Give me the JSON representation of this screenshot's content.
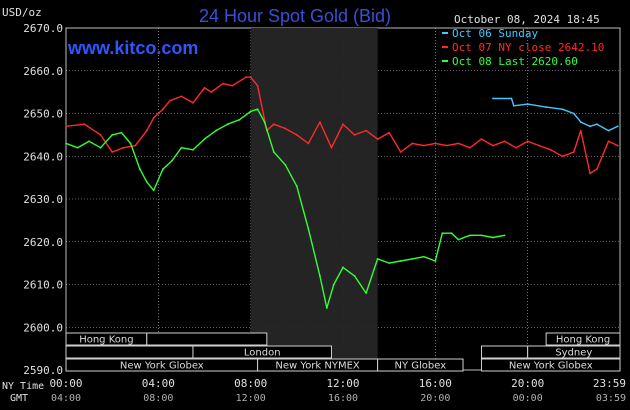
{
  "chart_data": {
    "type": "line",
    "title": "24 Hour Spot Gold (Bid)",
    "brand": "www.kitco.com",
    "timestamp": "October 08, 2024 18:45",
    "ylabel": "USD/oz",
    "ylim": [
      2590,
      2670
    ],
    "yticks": [
      "2670.0",
      "2660.0",
      "2650.0",
      "2640.0",
      "2630.0",
      "2620.0",
      "2610.0",
      "2600.0",
      "2590.0"
    ],
    "xlim": [
      0,
      24
    ],
    "x_row_labels": [
      "NY Time",
      "GMT"
    ],
    "xticks_ny": [
      "00:00",
      "04:00",
      "08:00",
      "12:00",
      "16:00",
      "20:00",
      "23:59"
    ],
    "xticks_gmt": [
      "04:00",
      "08:00",
      "12:00",
      "16:00",
      "20:00",
      "00:00",
      "03:59"
    ],
    "shade": [
      8.0,
      13.5
    ],
    "grid": true,
    "legend_position": "top-right",
    "series": [
      {
        "name": "Oct 06 Sunday",
        "color": "#44c8ff",
        "x": [
          18.5,
          19.3,
          19.4,
          20.0,
          20.8,
          21.5,
          22.0,
          22.3,
          22.7,
          23.0,
          23.5,
          23.9
        ],
        "y": [
          2653.5,
          2653.5,
          2651.8,
          2652.2,
          2651.5,
          2651.0,
          2650.0,
          2648.0,
          2647.0,
          2647.5,
          2646.0,
          2647.0
        ]
      },
      {
        "name": "Oct 07 NY close 2642.10",
        "color": "#ff2a2a",
        "x": [
          0,
          0.8,
          1.5,
          2.0,
          2.5,
          3.0,
          3.5,
          3.8,
          4.2,
          4.5,
          5.0,
          5.5,
          6.0,
          6.3,
          6.8,
          7.2,
          7.8,
          8.0,
          8.3,
          8.7,
          9.0,
          9.5,
          10.0,
          10.5,
          11.0,
          11.5,
          12.0,
          12.5,
          13.0,
          13.5,
          14.0,
          14.5,
          15.0,
          15.5,
          16.0,
          16.5,
          17.0,
          17.5,
          18.0,
          18.5,
          19.0,
          19.5,
          20.0,
          20.5,
          21.0,
          21.5,
          22.0,
          22.3,
          22.7,
          23.0,
          23.5,
          23.9
        ],
        "y": [
          2647.0,
          2647.5,
          2645.0,
          2641.0,
          2642.0,
          2642.5,
          2646.0,
          2649.0,
          2651.0,
          2653.0,
          2654.0,
          2652.5,
          2656.0,
          2655.0,
          2657.0,
          2656.5,
          2658.5,
          2658.5,
          2656.5,
          2646.0,
          2647.5,
          2646.5,
          2645.0,
          2643.0,
          2648.0,
          2642.0,
          2647.5,
          2645.0,
          2646.0,
          2644.0,
          2645.5,
          2641.0,
          2643.0,
          2642.5,
          2643.0,
          2642.5,
          2643.0,
          2642.0,
          2644.0,
          2642.5,
          2643.5,
          2642.0,
          2643.5,
          2642.5,
          2641.5,
          2640.0,
          2641.0,
          2646.0,
          2636.0,
          2637.0,
          2643.5,
          2642.5
        ]
      },
      {
        "name": "Oct 08 Last 2620.60",
        "color": "#33ff33",
        "x": [
          0,
          0.5,
          1.0,
          1.5,
          2.0,
          2.4,
          2.8,
          3.2,
          3.5,
          3.8,
          4.2,
          4.6,
          5.0,
          5.5,
          6.0,
          6.5,
          7.0,
          7.5,
          8.0,
          8.3,
          8.6,
          9.0,
          9.5,
          10.0,
          10.5,
          11.0,
          11.3,
          11.6,
          12.0,
          12.5,
          13.0,
          13.5,
          14.0,
          14.5,
          15.0,
          15.5,
          16.0,
          16.3,
          16.7,
          17.0,
          17.5,
          18.0,
          18.5,
          19.0
        ],
        "y": [
          2643.0,
          2642.0,
          2643.5,
          2642.0,
          2645.0,
          2645.5,
          2643.0,
          2637.0,
          2634.0,
          2632.0,
          2637.0,
          2639.0,
          2642.0,
          2641.5,
          2644.0,
          2646.0,
          2647.5,
          2648.5,
          2650.5,
          2651.0,
          2648.0,
          2641.0,
          2638.0,
          2633.0,
          2623.0,
          2612.0,
          2604.5,
          2610.0,
          2614.0,
          2612.0,
          2608.0,
          2616.0,
          2615.0,
          2615.5,
          2616.0,
          2616.5,
          2615.5,
          2622.0,
          2622.0,
          2620.5,
          2621.5,
          2621.5,
          2621.0,
          2621.5
        ]
      }
    ],
    "sessions": [
      {
        "name": "Hong Kong",
        "x0": -0.8,
        "x1": 3.5,
        "row": 0
      },
      {
        "name": "",
        "x0": 3.5,
        "x1": 8.7,
        "row": 0
      },
      {
        "name": "",
        "x0": -0.8,
        "x1": 5.5,
        "row": 1
      },
      {
        "name": "London",
        "x0": 5.5,
        "x1": 11.5,
        "row": 1
      },
      {
        "name": "New York Globex",
        "x0": -0.8,
        "x1": 8.3,
        "row": 2
      },
      {
        "name": "New York NYMEX",
        "x0": 8.3,
        "x1": 13.5,
        "row": 2
      },
      {
        "name": "NY Globex",
        "x0": 13.5,
        "x1": 17.2,
        "row": 2
      },
      {
        "name": "Hong Kong",
        "x0": 20.8,
        "x1": 24.0,
        "row": 0
      },
      {
        "name": "",
        "x0": 18.0,
        "x1": 20.0,
        "row": 1
      },
      {
        "name": "Sydney",
        "x0": 20.0,
        "x1": 24.0,
        "row": 1
      },
      {
        "name": "New York Globex",
        "x0": 18.0,
        "x1": 24.0,
        "row": 2
      }
    ]
  }
}
